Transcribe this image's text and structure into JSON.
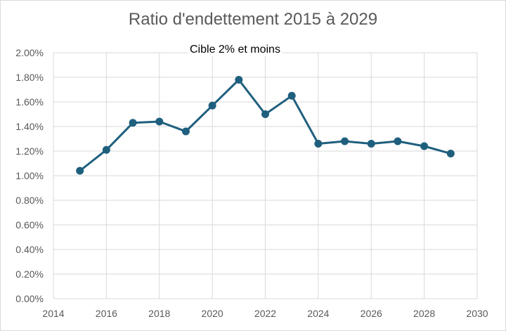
{
  "chart_data": {
    "type": "scatter",
    "title": "Ratio d'endettement 2015 à 2029",
    "annotation": "Cible 2% et moins",
    "xlabel": "",
    "ylabel": "",
    "xlim": [
      2014,
      2030
    ],
    "ylim": [
      0,
      0.02
    ],
    "x_ticks": [
      "2014",
      "2016",
      "2018",
      "2020",
      "2022",
      "2024",
      "2026",
      "2028",
      "2030"
    ],
    "y_ticks": [
      "0.00%",
      "0.20%",
      "0.40%",
      "0.60%",
      "0.80%",
      "1.00%",
      "1.20%",
      "1.40%",
      "1.60%",
      "1.80%",
      "2.00%"
    ],
    "grid": true,
    "legend": "none",
    "color": "#1f5f7e",
    "series": [
      {
        "x": [
          2015,
          2016,
          2017,
          2018,
          2019,
          2020,
          2021,
          2022,
          2023,
          2024,
          2025,
          2026,
          2027,
          2028,
          2029
        ],
        "y": [
          0.0104,
          0.0121,
          0.0143,
          0.0144,
          0.0136,
          0.0157,
          0.0178,
          0.015,
          0.0165,
          0.0126,
          0.0128,
          0.0126,
          0.0128,
          0.0124,
          0.0118
        ]
      }
    ]
  }
}
